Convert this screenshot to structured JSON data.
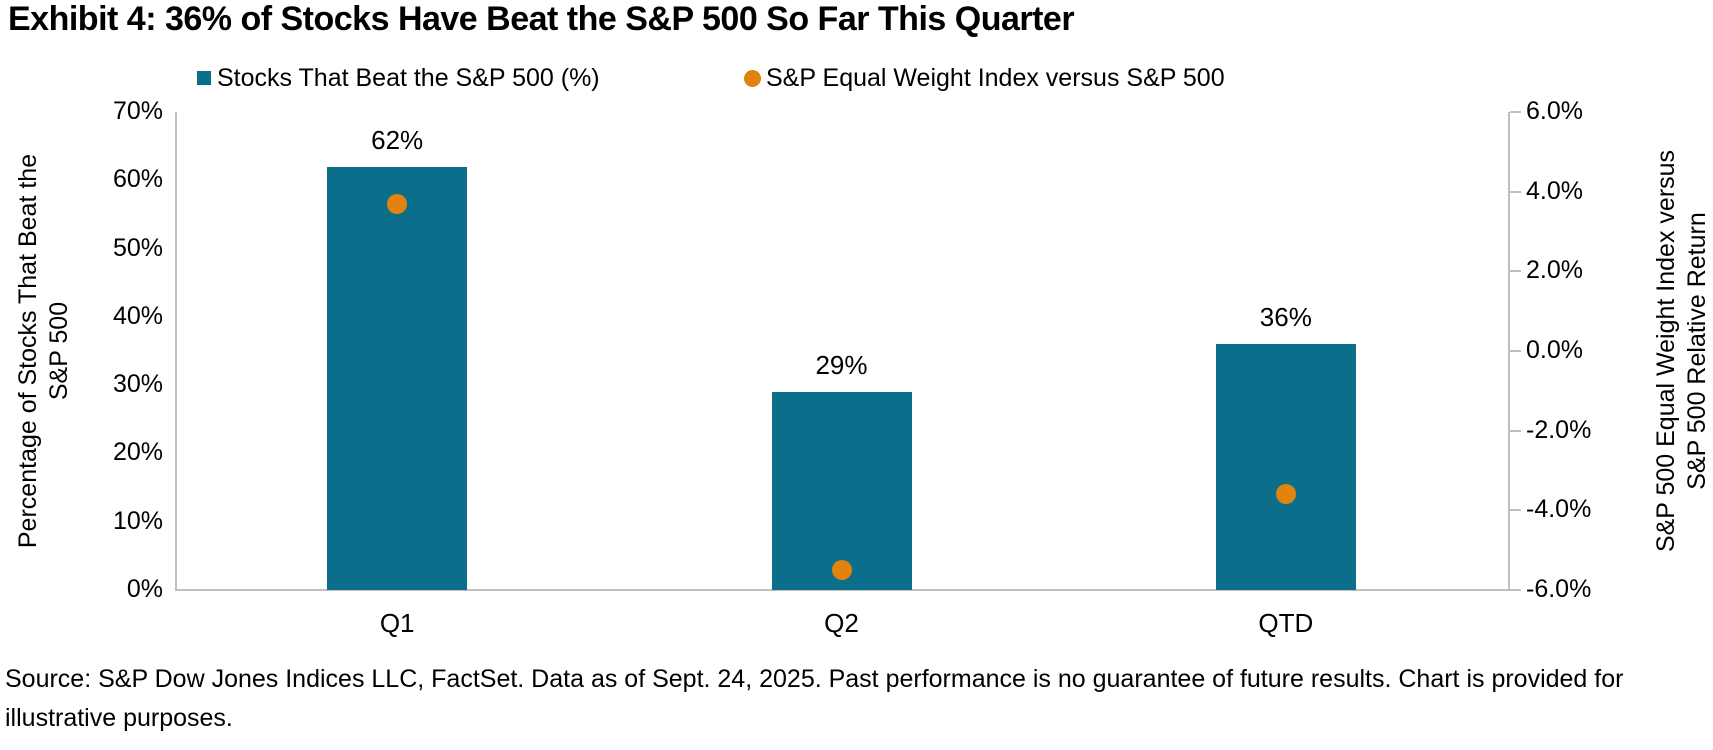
{
  "title": "Exhibit 4: 36% of Stocks Have Beat the S&P 500 So Far This Quarter",
  "legend": {
    "items": [
      {
        "label": "Stocks That Beat the S&P 500 (%)",
        "marker": "square",
        "color": "#0B6E8A"
      },
      {
        "label": "S&P Equal Weight Index versus S&P 500",
        "marker": "circle",
        "color": "#E2820F"
      }
    ]
  },
  "footer": "Source: S&P Dow Jones Indices LLC, FactSet. Data as of Sept. 24, 2025. Past performance is no guarantee of future results. Chart is provided for illustrative purposes.",
  "colors": {
    "bar": "#0B6E8A",
    "dot": "#E2820F",
    "axis_line": "#BFBFBF",
    "text": "#000000",
    "background": "#FFFFFF"
  },
  "chart_data": {
    "type": "bar",
    "subtype": "combo-bar-and-scatter-dual-axis",
    "title": "Exhibit 4: 36% of Stocks Have Beat the S&P 500 So Far This Quarter",
    "categories": [
      "Q1",
      "Q2",
      "QTD"
    ],
    "series": [
      {
        "name": "Stocks That Beat the S&P 500 (%)",
        "chart_type": "bar",
        "axis": "left",
        "values": [
          62,
          29,
          36
        ],
        "data_labels": [
          "62%",
          "29%",
          "36%"
        ],
        "color": "#0B6E8A"
      },
      {
        "name": "S&P Equal Weight Index versus S&P 500",
        "chart_type": "scatter",
        "axis": "right",
        "values": [
          3.7,
          -5.5,
          -3.6
        ],
        "color": "#E2820F"
      }
    ],
    "left_axis": {
      "label": "Percentage of Stocks That Beat the S&P 500",
      "label_lines": [
        "Percentage of Stocks That Beat the",
        "S&P 500"
      ],
      "min": 0,
      "max": 70,
      "step": 10,
      "ticks": [
        "70%",
        "60%",
        "50%",
        "40%",
        "30%",
        "20%",
        "10%",
        "0%"
      ]
    },
    "right_axis": {
      "label": "S&P 500 Equal Weight Index versus S&P 500 Relative Return",
      "label_lines": [
        "S&P 500 Equal Weight Index versus",
        "S&P 500 Relative Return"
      ],
      "min": -6,
      "max": 6,
      "step": 2,
      "ticks": [
        "6.0%",
        "4.0%",
        "2.0%",
        "0.0%",
        "-2.0%",
        "-4.0%",
        "-6.0%"
      ]
    },
    "grid": false,
    "legend_position": "top"
  }
}
